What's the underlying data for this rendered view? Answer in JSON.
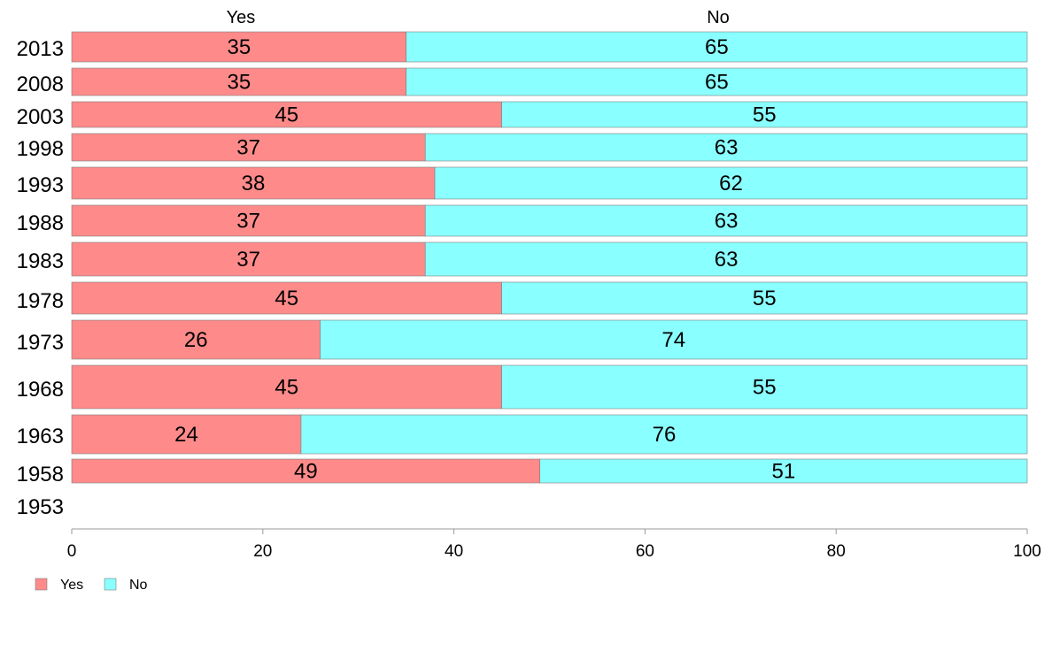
{
  "chart_data": {
    "type": "bar",
    "orientation": "horizontal",
    "stacked": true,
    "categories": [
      "2013",
      "2008",
      "2003",
      "1998",
      "1993",
      "1988",
      "1983",
      "1978",
      "1973",
      "1968",
      "1963",
      "1958",
      "1953"
    ],
    "series": [
      {
        "name": "Yes",
        "color": "#ff8a8a",
        "values": [
          35,
          35,
          45,
          37,
          38,
          37,
          37,
          45,
          26,
          45,
          24,
          49,
          null
        ]
      },
      {
        "name": "No",
        "color": "#8affff",
        "values": [
          65,
          65,
          55,
          63,
          62,
          63,
          63,
          55,
          74,
          55,
          76,
          51,
          null
        ]
      }
    ],
    "column_headers": [
      "Yes",
      "No"
    ],
    "xlim": [
      0,
      100
    ],
    "x_ticks": [
      "0",
      "20",
      "40",
      "60",
      "80",
      "100"
    ],
    "grid": false,
    "legend": {
      "position": "bottom-left",
      "entries": [
        "Yes",
        "No"
      ]
    }
  }
}
